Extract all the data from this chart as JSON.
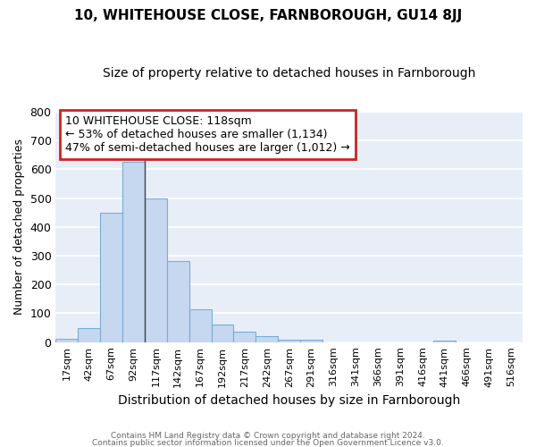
{
  "title": "10, WHITEHOUSE CLOSE, FARNBOROUGH, GU14 8JJ",
  "subtitle": "Size of property relative to detached houses in Farnborough",
  "xlabel": "Distribution of detached houses by size in Farnborough",
  "ylabel": "Number of detached properties",
  "bar_color": "#c5d8f0",
  "bar_edge_color": "#7aadd4",
  "plot_bg_color": "#e8eef8",
  "grid_color": "#ffffff",
  "categories": [
    "17sqm",
    "42sqm",
    "67sqm",
    "92sqm",
    "117sqm",
    "142sqm",
    "167sqm",
    "192sqm",
    "217sqm",
    "242sqm",
    "267sqm",
    "291sqm",
    "316sqm",
    "341sqm",
    "366sqm",
    "391sqm",
    "416sqm",
    "441sqm",
    "466sqm",
    "491sqm",
    "516sqm"
  ],
  "values": [
    10,
    50,
    450,
    625,
    500,
    280,
    115,
    60,
    35,
    22,
    8,
    8,
    0,
    0,
    0,
    0,
    0,
    5,
    0,
    0,
    0
  ],
  "ylim": [
    0,
    800
  ],
  "yticks": [
    0,
    100,
    200,
    300,
    400,
    500,
    600,
    700,
    800
  ],
  "vline_x": 4.0,
  "ann_line1": "10 WHITEHOUSE CLOSE: 118sqm",
  "ann_line2": "← 53% of detached houses are smaller (1,134)",
  "ann_line3": "47% of semi-detached houses are larger (1,012) →",
  "ann_box_fc": "#ffffff",
  "ann_box_ec": "#cc2222",
  "footer1": "Contains HM Land Registry data © Crown copyright and database right 2024.",
  "footer2": "Contains public sector information licensed under the Open Government Licence v3.0."
}
